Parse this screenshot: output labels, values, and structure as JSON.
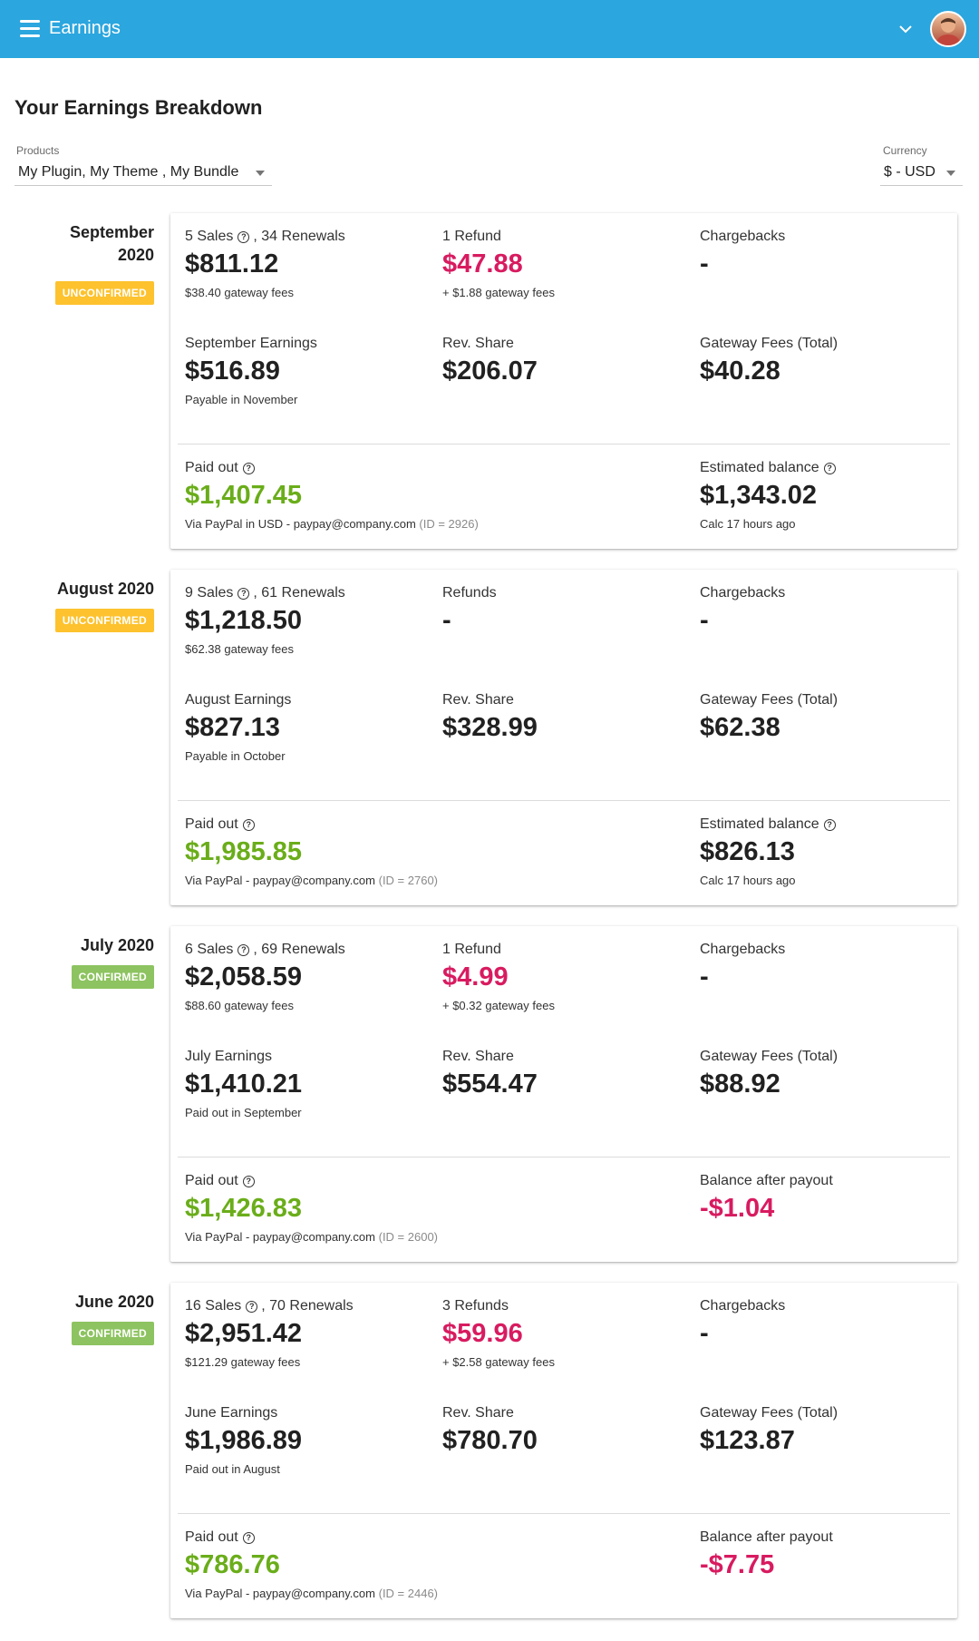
{
  "header": {
    "title": "Earnings"
  },
  "page": {
    "title": "Your Earnings Breakdown"
  },
  "filters": {
    "products": {
      "label": "Products",
      "value": "My Plugin, My Theme , My Bundle"
    },
    "currency": {
      "label": "Currency",
      "value": "$ - USD"
    }
  },
  "colors": {
    "appbar": "#2ba6de",
    "negative": "#d81b60",
    "paid": "#6aad1a",
    "unconfirmed": "#fdc22d",
    "confirmed": "#8dc360"
  },
  "icons": {
    "menu": "hamburger-icon",
    "expand": "chevron-down-icon",
    "help": "question-circle-icon",
    "user": "avatar"
  },
  "months": [
    {
      "label": "September 2020",
      "status": "UNCONFIRMED",
      "sales": {
        "sales_label": "5 Sales",
        "renewals_label": ", 34 Renewals",
        "amount": "$811.12",
        "sub": "$38.40 gateway fees"
      },
      "refunds": {
        "label": "1 Refund",
        "amount": "$47.88",
        "sub": "+ $1.88 gateway fees"
      },
      "chargebacks": {
        "label": "Chargebacks",
        "amount": "-"
      },
      "earnings": {
        "label": "September Earnings",
        "amount": "$516.89",
        "sub": "Payable in November"
      },
      "rev_share": {
        "label": "Rev. Share",
        "amount": "$206.07"
      },
      "gateway": {
        "label": "Gateway Fees (Total)",
        "amount": "$40.28"
      },
      "paid_out": {
        "label": "Paid out",
        "amount": "$1,407.45",
        "sub": "Via PayPal in USD - paypay@company.com",
        "id": "(ID = 2926)"
      },
      "balance": {
        "label": "Estimated balance",
        "amount": "$1,343.02",
        "sub": "Calc 17 hours ago"
      }
    },
    {
      "label": "August 2020",
      "status": "UNCONFIRMED",
      "sales": {
        "sales_label": "9 Sales",
        "renewals_label": ", 61 Renewals",
        "amount": "$1,218.50",
        "sub": "$62.38 gateway fees"
      },
      "refunds": {
        "label": "Refunds",
        "amount": "-",
        "sub": ""
      },
      "chargebacks": {
        "label": "Chargebacks",
        "amount": "-"
      },
      "earnings": {
        "label": "August Earnings",
        "amount": "$827.13",
        "sub": "Payable in October"
      },
      "rev_share": {
        "label": "Rev. Share",
        "amount": "$328.99"
      },
      "gateway": {
        "label": "Gateway Fees (Total)",
        "amount": "$62.38"
      },
      "paid_out": {
        "label": "Paid out",
        "amount": "$1,985.85",
        "sub": "Via PayPal - paypay@company.com",
        "id": "(ID = 2760)"
      },
      "balance": {
        "label": "Estimated balance",
        "amount": "$826.13",
        "sub": "Calc 17 hours ago"
      }
    },
    {
      "label": "July 2020",
      "status": "CONFIRMED",
      "sales": {
        "sales_label": "6 Sales",
        "renewals_label": ", 69 Renewals",
        "amount": "$2,058.59",
        "sub": "$88.60 gateway fees"
      },
      "refunds": {
        "label": "1 Refund",
        "amount": "$4.99",
        "sub": "+ $0.32 gateway fees"
      },
      "chargebacks": {
        "label": "Chargebacks",
        "amount": "-"
      },
      "earnings": {
        "label": "July Earnings",
        "amount": "$1,410.21",
        "sub": "Paid out in September"
      },
      "rev_share": {
        "label": "Rev. Share",
        "amount": "$554.47"
      },
      "gateway": {
        "label": "Gateway Fees (Total)",
        "amount": "$88.92"
      },
      "paid_out": {
        "label": "Paid out",
        "amount": "$1,426.83",
        "sub": "Via PayPal - paypay@company.com",
        "id": "(ID = 2600)"
      },
      "balance": {
        "label": "Balance after payout",
        "amount": "-$1.04",
        "sub": ""
      }
    },
    {
      "label": "June 2020",
      "status": "CONFIRMED",
      "sales": {
        "sales_label": "16 Sales",
        "renewals_label": ", 70 Renewals",
        "amount": "$2,951.42",
        "sub": "$121.29 gateway fees"
      },
      "refunds": {
        "label": "3 Refunds",
        "amount": "$59.96",
        "sub": "+ $2.58 gateway fees"
      },
      "chargebacks": {
        "label": "Chargebacks",
        "amount": "-"
      },
      "earnings": {
        "label": "June Earnings",
        "amount": "$1,986.89",
        "sub": "Paid out in August"
      },
      "rev_share": {
        "label": "Rev. Share",
        "amount": "$780.70"
      },
      "gateway": {
        "label": "Gateway Fees (Total)",
        "amount": "$123.87"
      },
      "paid_out": {
        "label": "Paid out",
        "amount": "$786.76",
        "sub": "Via PayPal - paypay@company.com",
        "id": "(ID = 2446)"
      },
      "balance": {
        "label": "Balance after payout",
        "amount": "-$7.75",
        "sub": ""
      }
    }
  ]
}
